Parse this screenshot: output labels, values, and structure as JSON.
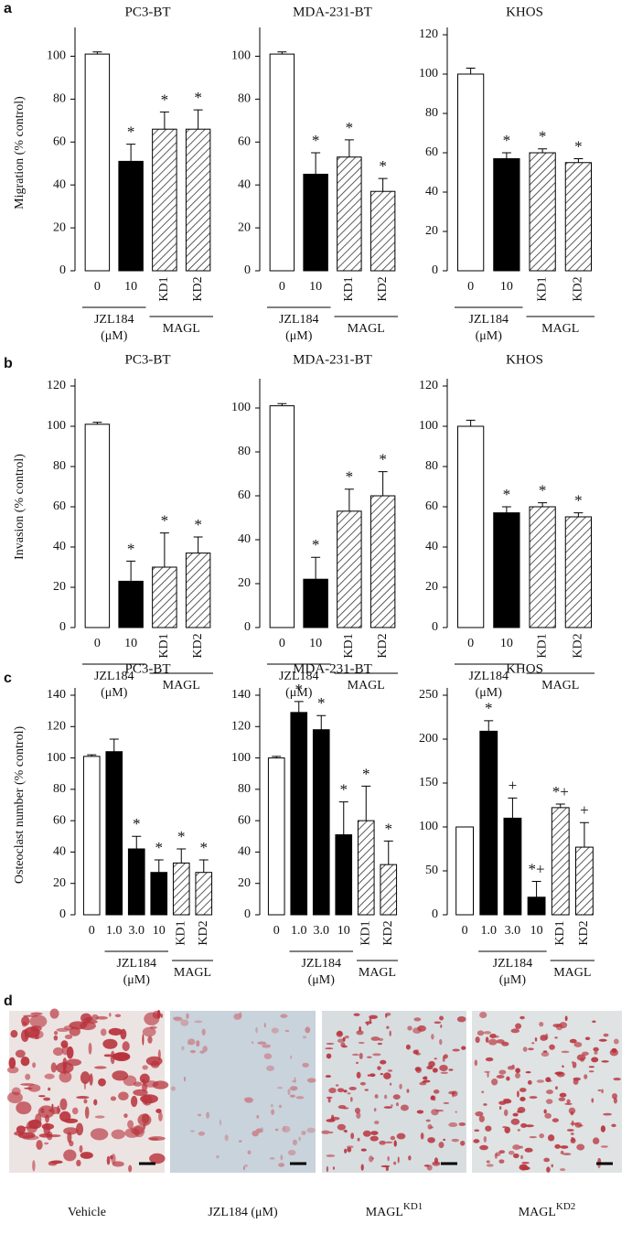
{
  "panel_labels": [
    "a",
    "b",
    "c",
    "d"
  ],
  "chart_data": [
    {
      "type": "bar",
      "title": "PC3-BT",
      "ylabel": "Migration (% control)",
      "categories": [
        "0",
        "10",
        "KD1",
        "KD2"
      ],
      "values": [
        101,
        51,
        66,
        66
      ],
      "errors": [
        1,
        8,
        8,
        9
      ],
      "markers": [
        null,
        "*",
        "*",
        "*"
      ],
      "fills": [
        "white",
        "black",
        "hatched",
        "hatched"
      ],
      "ylim": [
        0,
        110
      ],
      "yticks": [
        0,
        20,
        40,
        60,
        80,
        100
      ],
      "groups": [
        {
          "label": "JZL184",
          "unit": "(μM)",
          "count": 2
        },
        {
          "label": "MAGL",
          "count": 2
        }
      ]
    },
    {
      "type": "bar",
      "title": "MDA-231-BT",
      "categories": [
        "0",
        "10",
        "KD1",
        "KD2"
      ],
      "values": [
        101,
        45,
        53,
        37
      ],
      "errors": [
        1,
        10,
        8,
        6
      ],
      "markers": [
        null,
        "*",
        "*",
        "*"
      ],
      "fills": [
        "white",
        "black",
        "hatched",
        "hatched"
      ],
      "ylim": [
        0,
        110
      ],
      "yticks": [
        0,
        20,
        40,
        60,
        80,
        100
      ],
      "groups": [
        {
          "label": "JZL184",
          "unit": "(μM)",
          "count": 2
        },
        {
          "label": "MAGL",
          "count": 2
        }
      ]
    },
    {
      "type": "bar",
      "title": "KHOS",
      "categories": [
        "0",
        "10",
        "KD1",
        "KD2"
      ],
      "values": [
        100,
        57,
        60,
        55
      ],
      "errors": [
        3,
        3,
        2,
        2
      ],
      "markers": [
        null,
        "*",
        "*",
        "*"
      ],
      "fills": [
        "white",
        "black",
        "hatched",
        "hatched"
      ],
      "ylim": [
        0,
        120
      ],
      "yticks": [
        0,
        20,
        40,
        60,
        80,
        100,
        120
      ],
      "groups": [
        {
          "label": "JZL184",
          "unit": "(μM)",
          "count": 2
        },
        {
          "label": "MAGL",
          "count": 2
        }
      ]
    },
    {
      "type": "bar",
      "title": "PC3-BT",
      "ylabel": "Invasion (% control)",
      "categories": [
        "0",
        "10",
        "KD1",
        "KD2"
      ],
      "values": [
        101,
        23,
        30,
        37
      ],
      "errors": [
        1,
        10,
        17,
        8
      ],
      "markers": [
        null,
        "*",
        "*",
        "*"
      ],
      "fills": [
        "white",
        "black",
        "hatched",
        "hatched"
      ],
      "ylim": [
        0,
        120
      ],
      "yticks": [
        0,
        20,
        40,
        60,
        80,
        100,
        120
      ],
      "groups": [
        {
          "label": "JZL184",
          "unit": "(μM)",
          "count": 2
        },
        {
          "label": "MAGL",
          "count": 2
        }
      ]
    },
    {
      "type": "bar",
      "title": "MDA-231-BT",
      "categories": [
        "0",
        "10",
        "KD1",
        "KD2"
      ],
      "values": [
        101,
        22,
        53,
        60
      ],
      "errors": [
        1,
        10,
        10,
        11
      ],
      "markers": [
        null,
        "*",
        "*",
        "*"
      ],
      "fills": [
        "white",
        "black",
        "hatched",
        "hatched"
      ],
      "ylim": [
        0,
        110
      ],
      "yticks": [
        0,
        20,
        40,
        60,
        80,
        100
      ],
      "groups": [
        {
          "label": "JZL184",
          "unit": "(μM)",
          "count": 2
        },
        {
          "label": "MAGL",
          "count": 2
        }
      ]
    },
    {
      "type": "bar",
      "title": "KHOS",
      "categories": [
        "0",
        "10",
        "KD1",
        "KD2"
      ],
      "values": [
        100,
        57,
        60,
        55
      ],
      "errors": [
        3,
        3,
        2,
        2
      ],
      "markers": [
        null,
        "*",
        "*",
        "*"
      ],
      "fills": [
        "white",
        "black",
        "hatched",
        "hatched"
      ],
      "ylim": [
        0,
        120
      ],
      "yticks": [
        0,
        20,
        40,
        60,
        80,
        100,
        120
      ],
      "groups": [
        {
          "label": "JZL184",
          "unit": "(μM)",
          "count": 2
        },
        {
          "label": "MAGL",
          "count": 2
        }
      ]
    },
    {
      "type": "bar",
      "title": "PC3-BT",
      "ylabel": "Osteoclast number (% control)",
      "categories": [
        "0",
        "1.0",
        "3.0",
        "10",
        "KD1",
        "KD2"
      ],
      "values": [
        101,
        104,
        42,
        27,
        33,
        27
      ],
      "errors": [
        1,
        8,
        8,
        8,
        9,
        8
      ],
      "markers": [
        null,
        null,
        "*",
        "*",
        "*",
        "*"
      ],
      "fills": [
        "white",
        "black",
        "black",
        "black",
        "hatched",
        "hatched"
      ],
      "ylim": [
        0,
        140
      ],
      "yticks": [
        0,
        20,
        40,
        60,
        80,
        100,
        120,
        140
      ],
      "groups": [
        {
          "label": "JZL184",
          "unit": "(μM)",
          "count": 3
        },
        {
          "label": "MAGL",
          "count": 2
        }
      ]
    },
    {
      "type": "bar",
      "title": "MDA-231-BT",
      "categories": [
        "0",
        "1.0",
        "3.0",
        "10",
        "KD1",
        "KD2"
      ],
      "values": [
        100,
        129,
        118,
        51,
        60,
        32
      ],
      "errors": [
        1,
        7,
        9,
        21,
        22,
        15
      ],
      "markers": [
        null,
        "*",
        "*",
        "*",
        "*",
        "*"
      ],
      "fills": [
        "white",
        "black",
        "black",
        "black",
        "hatched",
        "hatched"
      ],
      "ylim": [
        0,
        140
      ],
      "yticks": [
        0,
        20,
        40,
        60,
        80,
        100,
        120,
        140
      ],
      "groups": [
        {
          "label": "JZL184",
          "unit": "(μM)",
          "count": 3
        },
        {
          "label": "MAGL",
          "count": 2
        }
      ]
    },
    {
      "type": "bar",
      "title": "KHOS",
      "categories": [
        "0",
        "1.0",
        "3.0",
        "10",
        "KD1",
        "KD2"
      ],
      "values": [
        100,
        209,
        110,
        20,
        122,
        77
      ],
      "errors": [
        0,
        12,
        23,
        18,
        4,
        28
      ],
      "markers": [
        null,
        "*",
        "+",
        "*+",
        "*+",
        "+"
      ],
      "fills": [
        "white",
        "black",
        "black",
        "black",
        "hatched",
        "hatched"
      ],
      "ylim": [
        0,
        250
      ],
      "yticks": [
        0,
        50,
        100,
        150,
        200,
        250
      ],
      "groups": [
        {
          "label": "JZL184",
          "unit": "(μM)",
          "count": 3
        },
        {
          "label": "MAGL",
          "count": 2
        }
      ]
    }
  ],
  "micrographs": [
    {
      "caption": "Vehicle"
    },
    {
      "caption": "JZL184 (μM)"
    },
    {
      "caption": "MAGL",
      "superscript": "KD1"
    },
    {
      "caption": "MAGL",
      "superscript": "KD2"
    }
  ]
}
